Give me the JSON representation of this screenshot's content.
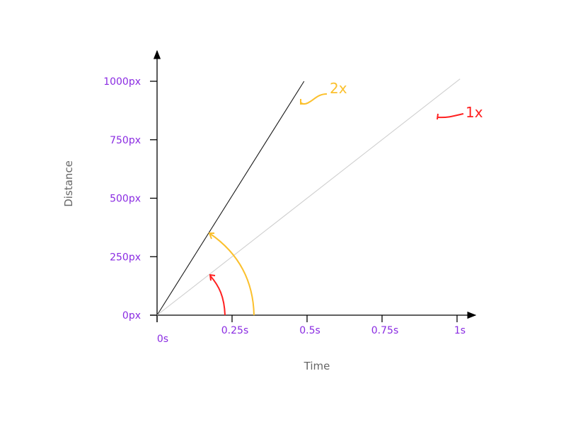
{
  "chart_data": {
    "type": "line",
    "title": "",
    "xlabel": "Time",
    "ylabel": "Distance",
    "xlim": [
      0,
      1
    ],
    "ylim": [
      0,
      1000
    ],
    "x_ticks": [
      {
        "value": 0,
        "label": "0s"
      },
      {
        "value": 0.25,
        "label": "0.25s"
      },
      {
        "value": 0.5,
        "label": "0.5s"
      },
      {
        "value": 0.75,
        "label": "0.75s"
      },
      {
        "value": 1,
        "label": "1s"
      }
    ],
    "y_ticks": [
      {
        "value": 0,
        "label": "0px"
      },
      {
        "value": 250,
        "label": "250px"
      },
      {
        "value": 500,
        "label": "500px"
      },
      {
        "value": 750,
        "label": "750px"
      },
      {
        "value": 1000,
        "label": "1000px"
      }
    ],
    "grid": false,
    "series": [
      {
        "name": "2x",
        "x": [
          0,
          0.49
        ],
        "y": [
          0,
          1000
        ],
        "color": "#1a1a1a"
      },
      {
        "name": "1x",
        "x": [
          0,
          1.01
        ],
        "y": [
          0,
          1010
        ],
        "color": "#cfcfcf"
      }
    ],
    "annotations": [
      {
        "text": "2x",
        "color": "#fbc02d"
      },
      {
        "text": "1x",
        "color": "#ff2020"
      }
    ],
    "tick_label_color": "#8a2be2",
    "axis_title_color": "#666666"
  }
}
